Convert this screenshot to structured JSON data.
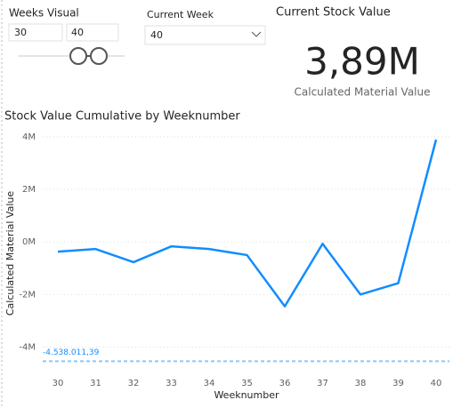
{
  "weeks_slicer": {
    "title": "Weeks Visual",
    "min": "30",
    "max": "40"
  },
  "week_dropdown": {
    "title": "Current Week",
    "value": "40"
  },
  "card": {
    "title": "Current Stock Value",
    "value": "3,89M",
    "label": "Calculated Material Value"
  },
  "chart_data": {
    "type": "line",
    "title": "Stock Value Cumulative by Weeknumber",
    "x_label": "Weeknumber",
    "y_label": "Calculated Material Value",
    "x": [
      30,
      31,
      32,
      33,
      34,
      35,
      36,
      37,
      38,
      39,
      40
    ],
    "series": [
      {
        "color": "#118dff",
        "values": [
          -370000,
          -270000,
          -770000,
          -170000,
          -270000,
          -500000,
          -2450000,
          -70000,
          -2000000,
          -1570000,
          3890000
        ]
      }
    ],
    "xlim": [
      30,
      40
    ],
    "xticks": [
      30,
      31,
      32,
      33,
      34,
      35,
      36,
      37,
      38,
      39,
      40
    ],
    "ylim": [
      -5000000,
      4300000
    ],
    "yticks": [
      {
        "value": -4000000,
        "label": "-4M"
      },
      {
        "value": -2000000,
        "label": "-2M"
      },
      {
        "value": 0,
        "label": "0M"
      },
      {
        "value": 2000000,
        "label": "2M"
      },
      {
        "value": 4000000,
        "label": "4M"
      }
    ],
    "grid": true,
    "reference_line": {
      "value": -4538011.39,
      "label": "-4.538.011,39",
      "color": "#8cc8f5"
    }
  }
}
